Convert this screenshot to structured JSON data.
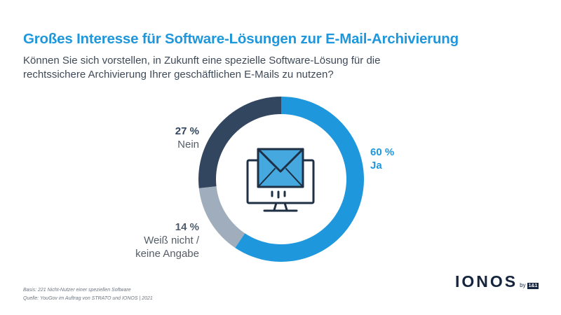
{
  "header": {
    "title": "Großes Interesse für Software-Lösungen zur E-Mail-Archivierung",
    "subtitle": "Können Sie sich vorstellen, in Zukunft eine spezielle Software-Lösung für die rechtssichere Archivierung Ihrer geschäftlichen E-Mails zu nutzen?"
  },
  "chart_data": {
    "type": "pie",
    "donut": true,
    "center_icon": "computer-monitor-mail-icon",
    "slices": [
      {
        "name": "Ja",
        "value": 60,
        "label": "60 %",
        "color": "#1f97dc"
      },
      {
        "name": "Weiß nicht / keine Angabe",
        "value": 14,
        "label": "14 %",
        "color": "#9fadbd"
      },
      {
        "name": "Nein",
        "value": 27,
        "label": "27 %",
        "color": "#32475f"
      }
    ]
  },
  "labels": {
    "ja": {
      "pct": "60 %",
      "name": "Ja"
    },
    "nein": {
      "pct": "27 %",
      "name": "Nein"
    },
    "weiss_nicht": {
      "pct": "14 %",
      "line1": "Weiß nicht /",
      "line2": "keine Angabe"
    }
  },
  "footer": {
    "basis": "Basis: 221 Nicht-Nutzer einer speziellen Software",
    "quelle": "Quelle: YouGov im Auftrag von STRATO und IONOS | 2021"
  },
  "logo": {
    "word": "IONOS",
    "by": "by",
    "box": "1&1"
  },
  "colors": {
    "accent": "#1f97dc",
    "dark": "#32475f",
    "grey": "#9fadbd",
    "brand": "#14243d"
  }
}
